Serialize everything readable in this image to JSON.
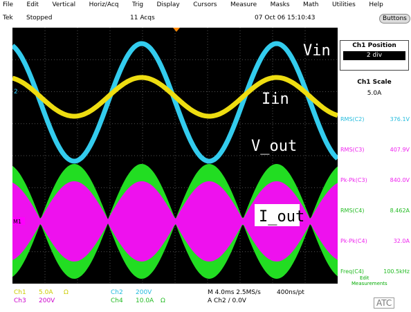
{
  "menu": [
    "File",
    "Edit",
    "Vertical",
    "Horiz/Acq",
    "Trig",
    "Display",
    "Cursors",
    "Measure",
    "Masks",
    "Math",
    "Utilities",
    "Help"
  ],
  "status": {
    "brand": "Tek",
    "state": "Stopped",
    "acqs": "11 Acqs",
    "timestamp": "07 Oct 06 15:10:43",
    "button": "Buttons"
  },
  "screen": {
    "labels": [
      "Vin",
      "Iin",
      "V_out",
      "I_out"
    ],
    "ch2_marker": "2",
    "m1_marker": "M1"
  },
  "panel": {
    "position_title": "Ch1 Position",
    "position_value": "2 div",
    "scale_title": "Ch1 Scale",
    "scale_value": "5.0A"
  },
  "readouts": [
    [
      "RMS(C2)",
      "376.1V"
    ],
    [
      "RMS(C3)",
      "407.9V"
    ],
    [
      "Pk-Pk(C3)",
      "840.0V"
    ],
    [
      "RMS(C4)",
      "8.462A"
    ],
    [
      "Pk-Pk(C4)",
      "32.0A"
    ],
    [
      "Freq(C4)",
      "100.5kHz"
    ]
  ],
  "readout_footer": [
    "Edit",
    "Measurements"
  ],
  "bottom": {
    "ch1": [
      "Ch1",
      "5.0A",
      "Ω"
    ],
    "ch3": [
      "Ch3",
      "200V"
    ],
    "ch2": [
      "Ch2",
      "200V"
    ],
    "ch4": [
      "Ch4",
      "10.0A",
      "Ω"
    ],
    "timebase": "M 4.0ms 2.5MS/s",
    "resolution": "400ns/pt",
    "trigger": "A Ch2 / 0.0V",
    "logo": "ATC"
  }
}
